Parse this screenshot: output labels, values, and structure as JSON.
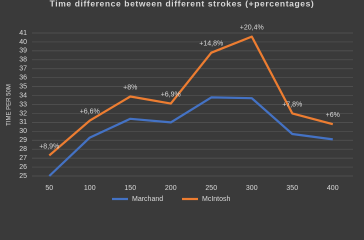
{
  "chart_data": {
    "type": "line",
    "title": "Time difference between different strokes (+percentages)",
    "y_label": "TIME PER 50M",
    "categories": [
      "50",
      "100",
      "150",
      "200",
      "250",
      "300",
      "350",
      "400"
    ],
    "series": [
      {
        "name": "Marchand",
        "color": "#4472c4",
        "values": [
          25.0,
          29.3,
          31.4,
          31.0,
          33.8,
          33.7,
          29.7,
          29.1
        ]
      },
      {
        "name": "McIntosh",
        "color": "#ed7d31",
        "values": [
          27.3,
          31.2,
          33.9,
          33.1,
          38.8,
          40.6,
          32.0,
          30.8
        ]
      }
    ],
    "annotations": [
      "+8,9%",
      "+6,6%",
      "+8%",
      "+6,9%",
      "+14,8%",
      "+20,4%",
      "+7,8%",
      "+6%"
    ],
    "ylim": [
      25,
      41
    ],
    "yticks": [
      25,
      26,
      27,
      28,
      29,
      30,
      31,
      32,
      33,
      34,
      35,
      36,
      37,
      38,
      39,
      40,
      41
    ],
    "grid": true,
    "legend": "bottom"
  }
}
